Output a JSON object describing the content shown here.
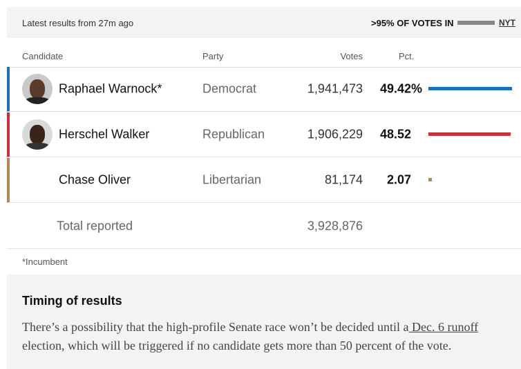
{
  "header": {
    "updated": "Latest results from 27m ago",
    "reporting": ">95% OF VOTES IN",
    "source": "NYT"
  },
  "table": {
    "columns": [
      "Candidate",
      "Party",
      "Votes",
      "Pct."
    ],
    "rows": [
      {
        "name": "Raphael Warnock*",
        "party": "Democrat",
        "votes": "1,941,473",
        "pct": {
          "value": 49.42,
          "label": "49.42%"
        },
        "color": "#1f6fb4"
      },
      {
        "name": "Herschel Walker",
        "party": "Republican",
        "votes": "1,906,229",
        "pct": {
          "value": 48.52,
          "label": "48.52"
        },
        "color": "#c5323b"
      },
      {
        "name": "Chase Oliver",
        "party": "Libertarian",
        "votes": "81,174",
        "pct": {
          "value": 2.07,
          "label": "2.07"
        },
        "color": "#a88b57"
      }
    ],
    "total": {
      "label": "Total reported",
      "votes": "3,928,876"
    }
  },
  "footnote": "*Incumbent",
  "timing": {
    "title": "Timing of results",
    "text_before": "There’s a possibility that the high-profile Senate race won’t be decided until a",
    "link": " Dec. 6 runoff",
    "text_after": " election, which will be triggered if no candidate gets more than 50 percent of the vote."
  }
}
